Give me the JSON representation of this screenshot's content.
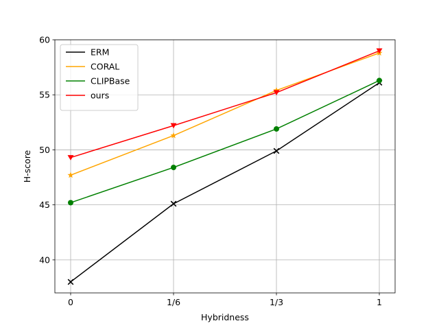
{
  "chart_data": {
    "type": "line",
    "title": "",
    "xlabel": "Hybridness",
    "ylabel": "H-score",
    "categories": [
      "0",
      "1/6",
      "1/3",
      "1"
    ],
    "ylim": [
      37,
      60
    ],
    "yticks": [
      40,
      45,
      50,
      55,
      60
    ],
    "grid": true,
    "legend_position": "top-left",
    "series": [
      {
        "name": "ERM",
        "color": "#000000",
        "marker": "x",
        "values": [
          38.0,
          45.1,
          49.9,
          56.1
        ]
      },
      {
        "name": "CORAL",
        "color": "#ffa500",
        "marker": "star",
        "values": [
          47.7,
          51.3,
          55.4,
          58.8
        ]
      },
      {
        "name": "CLIPBase",
        "color": "#008000",
        "marker": "circle",
        "values": [
          45.2,
          48.4,
          51.9,
          56.3
        ]
      },
      {
        "name": "ours",
        "color": "#ff0000",
        "marker": "triangle-down",
        "values": [
          49.3,
          52.2,
          55.2,
          59.0
        ]
      }
    ]
  }
}
